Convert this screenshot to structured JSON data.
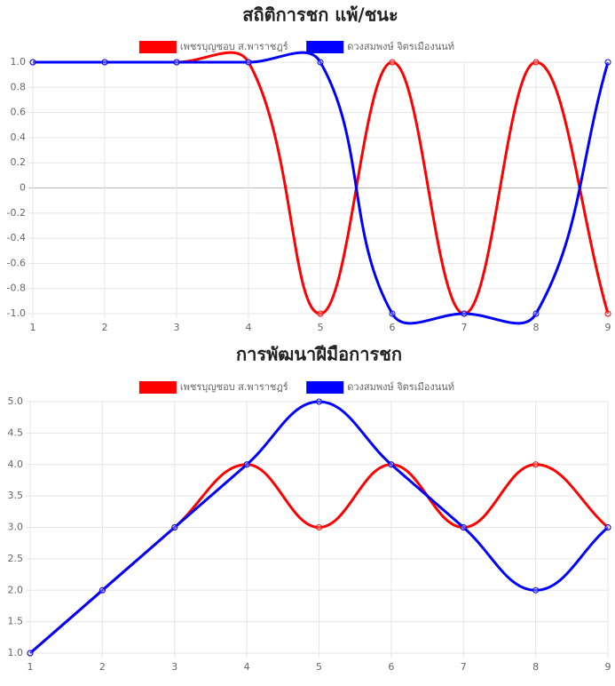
{
  "chart_data": [
    {
      "type": "line",
      "title": "สถิติการชก แพ้/ชนะ",
      "x": [
        1,
        2,
        3,
        4,
        5,
        6,
        7,
        8,
        9
      ],
      "series": [
        {
          "name": "เพชรบุญชอบ ส.พาราชฎร์",
          "color": "#ff0000",
          "values": [
            1,
            1,
            1,
            1,
            -1,
            1,
            -1,
            1,
            -1
          ]
        },
        {
          "name": "ดวงสมพงษ์ จิตรเมืองนนท์",
          "color": "#0000ff",
          "values": [
            1,
            1,
            1,
            1,
            1,
            -1,
            -1,
            -1,
            1
          ]
        }
      ],
      "xlim": [
        1,
        9
      ],
      "ylim": [
        -1,
        1
      ],
      "yticks": [
        {
          "value": 1,
          "label": "1.0"
        },
        0.8,
        0.6,
        0.4,
        0.2,
        0,
        -0.2,
        -0.4,
        -0.6,
        -0.8,
        {
          "value": -1,
          "label": "-1.0"
        }
      ],
      "grid": true,
      "legend": "top"
    },
    {
      "type": "line",
      "title": "การพัฒนาฝีมือการชก",
      "x": [
        1,
        2,
        3,
        4,
        5,
        6,
        7,
        8,
        9
      ],
      "series": [
        {
          "name": "เพชรบุญชอบ ส.พาราชฎร์",
          "color": "#ff0000",
          "values": [
            1,
            2,
            3,
            4,
            3,
            4,
            3,
            4,
            3
          ]
        },
        {
          "name": "ดวงสมพงษ์ จิตรเมืองนนท์",
          "color": "#0000ff",
          "values": [
            1,
            2,
            3,
            4,
            5,
            4,
            3,
            2,
            3
          ]
        }
      ],
      "xlim": [
        1,
        9
      ],
      "ylim": [
        1,
        5
      ],
      "yticks": [
        {
          "value": 5,
          "label": "5.0"
        },
        4.5,
        {
          "value": 4,
          "label": "4.0"
        },
        3.5,
        {
          "value": 3,
          "label": "3.0"
        },
        2.5,
        {
          "value": 2,
          "label": "2.0"
        },
        1.5,
        {
          "value": 1,
          "label": "1.0"
        }
      ],
      "grid": true,
      "legend": "top"
    }
  ]
}
